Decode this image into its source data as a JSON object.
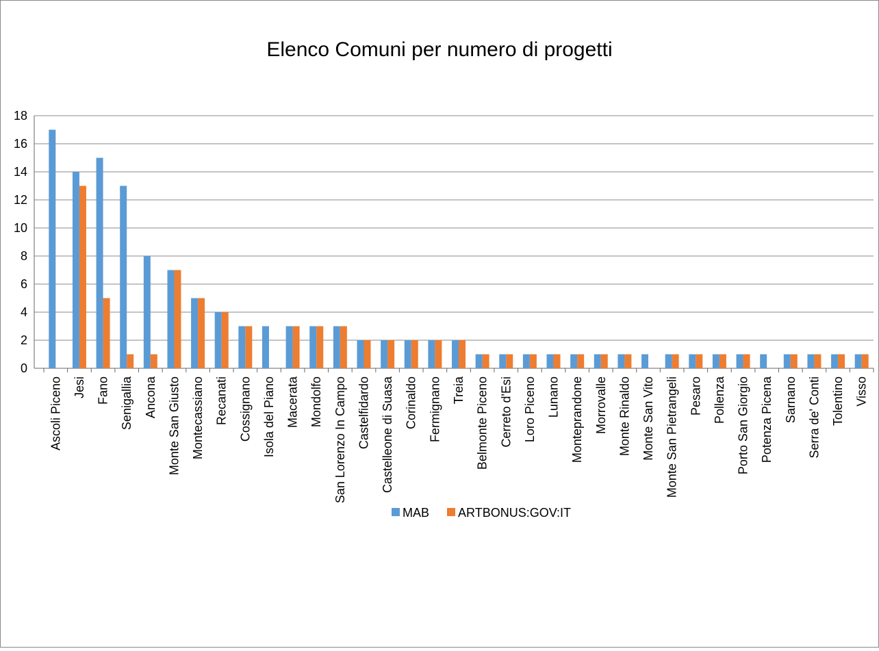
{
  "chart_data": {
    "type": "bar",
    "title": "Elenco Comuni per numero di progetti",
    "categories": [
      "Ascoli Piceno",
      "Jesi",
      "Fano",
      "Senigallia",
      "Ancona",
      "Monte San Giusto",
      "Montecassiano",
      "Recanati",
      "Cossignano",
      "Isola del Piano",
      "Macerata",
      "Mondolfo",
      "San Lorenzo In Campo",
      "Castelfidardo",
      "Castelleone di Suasa",
      "Corinaldo",
      "Fermignano",
      "Treia",
      "Belmonte Piceno",
      "Cerreto d'Esi",
      "Loro Piceno",
      "Lunano",
      "Monteprandone",
      "Morrovalle",
      "Monte Rinaldo",
      "Monte San Vito",
      "Monte San Pietrangeli",
      "Pesaro",
      "Pollenza",
      "Porto San Giorgio",
      "Potenza Picena",
      "Sarnano",
      "Serra de' Conti",
      "Tolentino",
      "Visso"
    ],
    "series": [
      {
        "name": "MAB",
        "color": "#5b9bd5",
        "values": [
          17,
          14,
          15,
          13,
          8,
          7,
          5,
          4,
          3,
          3,
          3,
          3,
          3,
          2,
          2,
          2,
          2,
          2,
          1,
          1,
          1,
          1,
          1,
          1,
          1,
          1,
          1,
          1,
          1,
          1,
          1,
          1,
          1,
          1,
          1
        ]
      },
      {
        "name": "ARTBONUS:GOV:IT",
        "color": "#ed7d31",
        "values": [
          0,
          13,
          5,
          1,
          1,
          7,
          5,
          4,
          3,
          0,
          3,
          3,
          3,
          2,
          2,
          2,
          2,
          2,
          1,
          1,
          1,
          1,
          1,
          1,
          1,
          0,
          1,
          1,
          1,
          1,
          0,
          1,
          1,
          1,
          1
        ]
      }
    ],
    "ylim": [
      0,
      18
    ],
    "yticks": [
      0,
      2,
      4,
      6,
      8,
      10,
      12,
      14,
      16,
      18
    ],
    "grid": true,
    "legend": "bottom"
  }
}
